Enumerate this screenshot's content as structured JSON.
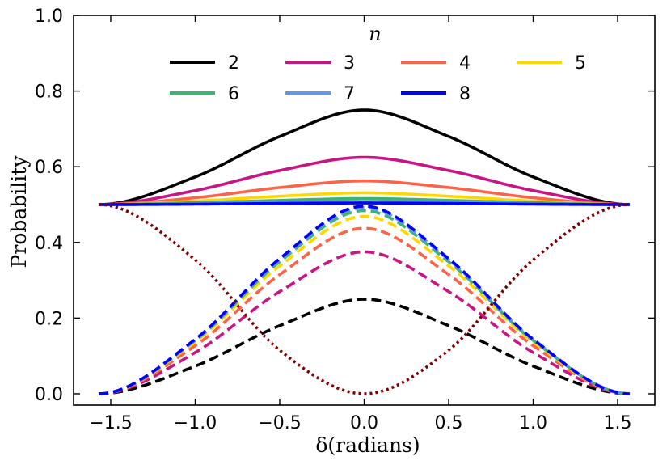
{
  "chart_data": {
    "type": "line",
    "xlabel": "δ(radians)",
    "ylabel": "Probability",
    "xlim": [
      -1.72,
      1.72
    ],
    "ylim": [
      -0.03,
      1.0
    ],
    "xticks": [
      -1.5,
      -1.0,
      -0.5,
      0.0,
      0.5,
      1.0,
      1.5
    ],
    "xtick_labels": [
      "−1.5",
      "−1.0",
      "−0.5",
      "0.0",
      "0.5",
      "1.0",
      "1.5"
    ],
    "yticks": [
      0.0,
      0.2,
      0.4,
      0.6,
      0.8,
      1.0
    ],
    "ytick_labels": [
      "0.0",
      "0.2",
      "0.4",
      "0.6",
      "0.8",
      "1.0"
    ],
    "x_range": [
      -1.5708,
      1.5708
    ],
    "grid": false,
    "legend": {
      "title": "n",
      "placement": "top-center",
      "columns": 4,
      "entries": [
        "2",
        "3",
        "4",
        "5",
        "6",
        "7",
        "8"
      ]
    },
    "sample_x": [
      -1.5708,
      -1.0,
      -0.5,
      0.0,
      0.5,
      1.0,
      1.5708
    ],
    "series": [
      {
        "name": "2",
        "color": "#000000",
        "style": "solid",
        "values": [
          0.5,
          0.573,
          0.68,
          0.75,
          0.68,
          0.573,
          0.5
        ]
      },
      {
        "name": "2",
        "color": "#000000",
        "style": "dashed",
        "values": [
          0.0,
          0.073,
          0.18,
          0.25,
          0.18,
          0.073,
          0.0
        ]
      },
      {
        "name": "3",
        "color": "#c71585",
        "style": "solid",
        "values": [
          0.5,
          0.537,
          0.59,
          0.625,
          0.59,
          0.537,
          0.5
        ]
      },
      {
        "name": "3",
        "color": "#c71585",
        "style": "dashed",
        "values": [
          0.0,
          0.109,
          0.27,
          0.375,
          0.27,
          0.109,
          0.0
        ]
      },
      {
        "name": "4",
        "color": "#ff6347",
        "style": "solid",
        "values": [
          0.5,
          0.518,
          0.545,
          0.5625,
          0.545,
          0.518,
          0.5
        ]
      },
      {
        "name": "4",
        "color": "#ff6347",
        "style": "dashed",
        "values": [
          0.0,
          0.127,
          0.315,
          0.4375,
          0.315,
          0.127,
          0.0
        ]
      },
      {
        "name": "5",
        "color": "#ffd700",
        "style": "solid",
        "values": [
          0.5,
          0.509,
          0.522,
          0.531,
          0.522,
          0.509,
          0.5
        ]
      },
      {
        "name": "5",
        "color": "#ffd700",
        "style": "dashed",
        "values": [
          0.0,
          0.137,
          0.338,
          0.469,
          0.338,
          0.137,
          0.0
        ]
      },
      {
        "name": "6",
        "color": "#3cb371",
        "style": "solid",
        "values": [
          0.5,
          0.505,
          0.511,
          0.516,
          0.511,
          0.505,
          0.5
        ]
      },
      {
        "name": "6",
        "color": "#3cb371",
        "style": "dashed",
        "values": [
          0.0,
          0.141,
          0.349,
          0.484,
          0.349,
          0.141,
          0.0
        ]
      },
      {
        "name": "7",
        "color": "#6495ed",
        "style": "solid",
        "values": [
          0.5,
          0.502,
          0.506,
          0.508,
          0.506,
          0.502,
          0.5
        ]
      },
      {
        "name": "7",
        "color": "#6495ed",
        "style": "dashed",
        "values": [
          0.0,
          0.143,
          0.354,
          0.492,
          0.354,
          0.143,
          0.0
        ]
      },
      {
        "name": "8",
        "color": "#0000ff",
        "style": "solid",
        "values": [
          0.5,
          0.501,
          0.503,
          0.504,
          0.503,
          0.501,
          0.5
        ]
      },
      {
        "name": "8",
        "color": "#0000ff",
        "style": "dashed",
        "values": [
          0.0,
          0.144,
          0.357,
          0.496,
          0.357,
          0.144,
          0.0
        ]
      },
      {
        "name": "",
        "color": "#800000",
        "style": "dotted",
        "values": [
          0.5,
          0.354,
          0.115,
          0.0,
          0.115,
          0.354,
          0.5
        ]
      }
    ]
  }
}
